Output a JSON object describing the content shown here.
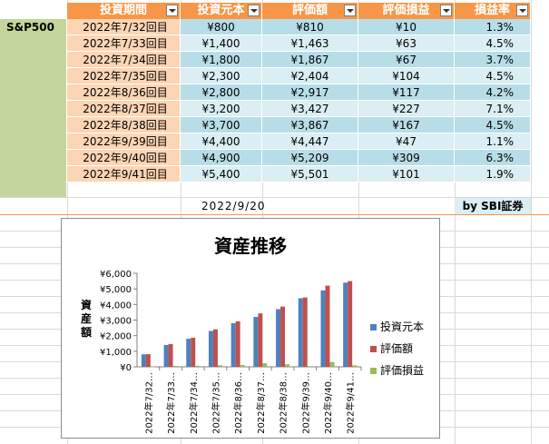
{
  "index_label": "S&P500",
  "headers": {
    "period": "投資期間",
    "invested": "投資元本",
    "value": "評価額",
    "gain": "評価損益",
    "rate": "損益率"
  },
  "rows": [
    {
      "period": "2022年7/32回目",
      "invested": "¥800",
      "value": "¥810",
      "gain": "¥10",
      "rate": "1.3%"
    },
    {
      "period": "2022年7/33回目",
      "invested": "¥1,400",
      "value": "¥1,463",
      "gain": "¥63",
      "rate": "4.5%"
    },
    {
      "period": "2022年7/34回目",
      "invested": "¥1,800",
      "value": "¥1,867",
      "gain": "¥67",
      "rate": "3.7%"
    },
    {
      "period": "2022年7/35回目",
      "invested": "¥2,300",
      "value": "¥2,404",
      "gain": "¥104",
      "rate": "4.5%"
    },
    {
      "period": "2022年8/36回目",
      "invested": "¥2,800",
      "value": "¥2,917",
      "gain": "¥117",
      "rate": "4.2%"
    },
    {
      "period": "2022年8/37回目",
      "invested": "¥3,200",
      "value": "¥3,427",
      "gain": "¥227",
      "rate": "7.1%"
    },
    {
      "period": "2022年8/38回目",
      "invested": "¥3,700",
      "value": "¥3,867",
      "gain": "¥167",
      "rate": "4.5%"
    },
    {
      "period": "2022年9/39回目",
      "invested": "¥4,400",
      "value": "¥4,447",
      "gain": "¥47",
      "rate": "1.1%"
    },
    {
      "period": "2022年9/40回目",
      "invested": "¥4,900",
      "value": "¥5,209",
      "gain": "¥309",
      "rate": "6.3%"
    },
    {
      "period": "2022年9/41回目",
      "invested": "¥5,400",
      "value": "¥5,501",
      "gain": "¥101",
      "rate": "1.9%"
    }
  ],
  "date": "2022/9/20",
  "credit": "by SBI証券",
  "colors": {
    "header_bg": "#f79646",
    "period_bg": "#fcd5b4",
    "label_bg": "#c3d69b",
    "row_dark": "#b7dee8",
    "row_light": "#daeef3",
    "series_invested": "#4f81bd",
    "series_value": "#c0504d",
    "series_gain": "#9bbb59"
  },
  "chart_data": {
    "type": "bar",
    "title": "資産推移",
    "ylabel": "資産額",
    "xlabel": "",
    "categories": [
      "2022年7/32…",
      "2022年7/33…",
      "2022年7/34…",
      "2022年7/35…",
      "2022年8/36…",
      "2022年8/37…",
      "2022年8/38…",
      "2022年9/39…",
      "2022年9/40…",
      "2022年9/41…"
    ],
    "series": [
      {
        "name": "投資元本",
        "values": [
          800,
          1400,
          1800,
          2300,
          2800,
          3200,
          3700,
          4400,
          4900,
          5400
        ]
      },
      {
        "name": "評価額",
        "values": [
          810,
          1463,
          1867,
          2404,
          2917,
          3427,
          3867,
          4447,
          5209,
          5501
        ]
      },
      {
        "name": "評価損益",
        "values": [
          10,
          63,
          67,
          104,
          117,
          227,
          167,
          47,
          309,
          101
        ]
      }
    ],
    "ylim": [
      0,
      6000
    ],
    "yticks": [
      "¥0",
      "¥1,000",
      "¥2,000",
      "¥3,000",
      "¥4,000",
      "¥5,000",
      "¥6,000"
    ],
    "grid": false,
    "legend": "right"
  }
}
